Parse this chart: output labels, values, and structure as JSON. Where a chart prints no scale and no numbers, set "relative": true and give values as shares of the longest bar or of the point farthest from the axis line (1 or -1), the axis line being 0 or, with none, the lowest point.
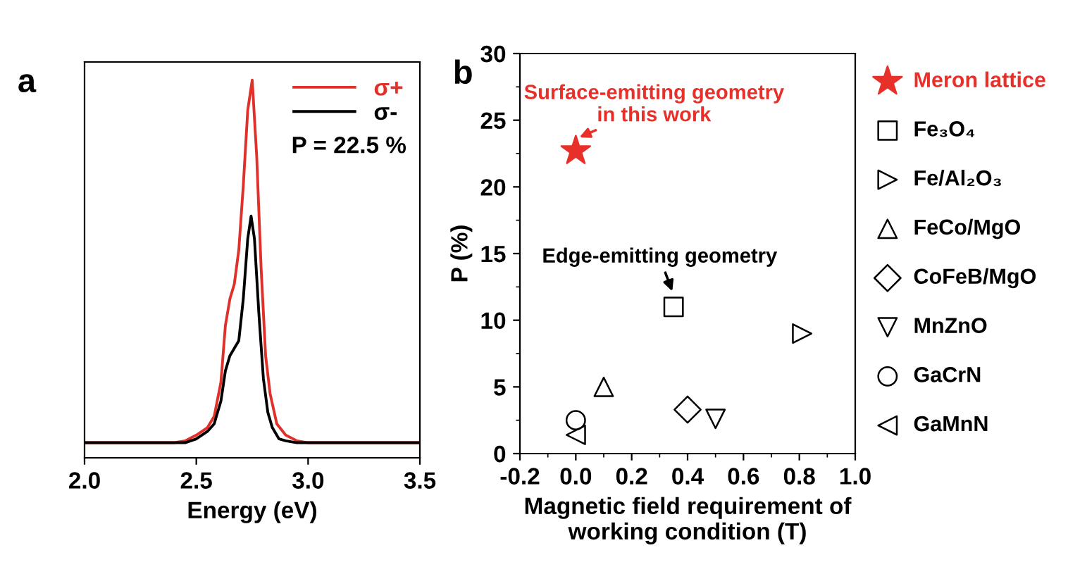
{
  "chart_data": [
    {
      "type": "line",
      "relative": true,
      "xlabel": "Energy (eV)",
      "xlim": [
        2.0,
        3.5
      ],
      "xticks": [
        {
          "value": 2.0,
          "label": "2.0"
        },
        2.5,
        {
          "value": 3.0,
          "label": "3.0"
        },
        3.5
      ],
      "legend": "top right",
      "grid": false,
      "annotations": [
        "a",
        "P = 22.5 %"
      ],
      "series": [
        {
          "name": "σ+",
          "color": "#e0302a",
          "x": [
            2.0,
            2.2,
            2.4,
            2.45,
            2.5,
            2.55,
            2.58,
            2.61,
            2.63,
            2.65,
            2.67,
            2.69,
            2.71,
            2.73,
            2.75,
            2.77,
            2.79,
            2.81,
            2.83,
            2.86,
            2.9,
            2.95,
            3.0,
            3.2,
            3.5
          ],
          "values": [
            0.04,
            0.04,
            0.04,
            0.045,
            0.06,
            0.08,
            0.11,
            0.2,
            0.35,
            0.42,
            0.46,
            0.55,
            0.72,
            0.92,
            1.0,
            0.8,
            0.5,
            0.27,
            0.17,
            0.09,
            0.06,
            0.045,
            0.04,
            0.04,
            0.04
          ]
        },
        {
          "name": "σ-",
          "color": "#000000",
          "x": [
            2.0,
            2.2,
            2.4,
            2.45,
            2.5,
            2.55,
            2.58,
            2.61,
            2.63,
            2.65,
            2.67,
            2.69,
            2.71,
            2.73,
            2.745,
            2.76,
            2.78,
            2.8,
            2.82,
            2.84,
            2.87,
            2.9,
            2.95,
            3.0,
            3.2,
            3.5
          ],
          "values": [
            0.04,
            0.04,
            0.04,
            0.04,
            0.05,
            0.07,
            0.09,
            0.15,
            0.23,
            0.27,
            0.29,
            0.31,
            0.42,
            0.58,
            0.64,
            0.58,
            0.38,
            0.21,
            0.12,
            0.08,
            0.05,
            0.045,
            0.04,
            0.04,
            0.04,
            0.04
          ]
        }
      ]
    },
    {
      "type": "scatter",
      "xlabel": "Magnetic field requirement of\nworking condition (T)",
      "ylabel": "P (%)",
      "xlim": [
        -0.2,
        1.0
      ],
      "ylim": [
        0,
        30
      ],
      "xticks": [
        {
          "value": -0.2,
          "label": "-0.2"
        },
        {
          "value": 0.0,
          "label": "0.0"
        },
        {
          "value": 0.2,
          "label": "0.2"
        },
        {
          "value": 0.4,
          "label": "0.4"
        },
        {
          "value": 0.6,
          "label": "0.6"
        },
        {
          "value": 0.8,
          "label": "0.8"
        },
        {
          "value": 1.0,
          "label": "1.0"
        }
      ],
      "yticks": [
        0,
        5,
        10,
        15,
        20,
        25,
        30
      ],
      "legend": "right",
      "grid": false,
      "annotations": [
        "b",
        {
          "text": "Surface-emitting geometry\nin this work",
          "x": 0.0,
          "y": 22.7
        },
        {
          "text": "Edge-emitting geometry",
          "x": 0.35,
          "y": 11
        }
      ],
      "series": [
        {
          "name": "Meron lattice",
          "color": "#e8302a",
          "marker": "star",
          "x": [
            0.0
          ],
          "values": [
            22.7
          ]
        },
        {
          "name": "Fe₃O₄",
          "color": "#000000",
          "marker": "square",
          "x": [
            0.35
          ],
          "values": [
            11
          ]
        },
        {
          "name": "Fe/Al₂O₃",
          "color": "#000000",
          "marker": "triangle_right",
          "x": [
            0.81
          ],
          "values": [
            9
          ]
        },
        {
          "name": "FeCo/MgO",
          "color": "#000000",
          "marker": "triangle",
          "x": [
            0.1
          ],
          "values": [
            5
          ]
        },
        {
          "name": "CoFeB/MgO",
          "color": "#000000",
          "marker": "diamond",
          "x": [
            0.4
          ],
          "values": [
            3.3
          ]
        },
        {
          "name": "MnZnO",
          "color": "#000000",
          "marker": "triangle_down",
          "x": [
            0.5
          ],
          "values": [
            2.6
          ]
        },
        {
          "name": "GaCrN",
          "color": "#000000",
          "marker": "circle",
          "x": [
            0.0
          ],
          "values": [
            2.5
          ]
        },
        {
          "name": "GaMnN",
          "color": "#000000",
          "marker": "triangle_left",
          "x": [
            0.0
          ],
          "values": [
            1.4
          ]
        }
      ]
    }
  ]
}
